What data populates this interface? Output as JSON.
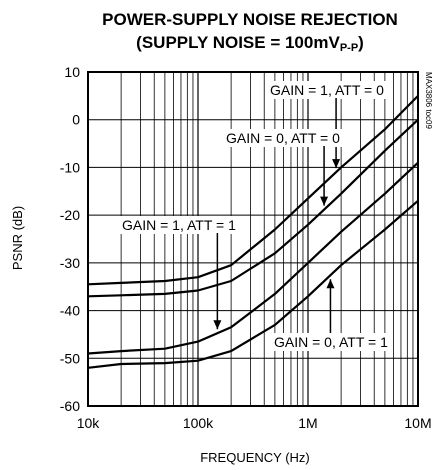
{
  "chart_data": {
    "type": "line",
    "title_line1": "POWER-SUPPLY NOISE REJECTION",
    "title_line2_main": "(SUPPLY NOISE = 100mV",
    "title_line2_sub": "P-P",
    "title_line2_end": ")",
    "xlabel": "FREQUENCY (Hz)",
    "ylabel": "PSNR (dB)",
    "x_scale": "log",
    "xlim": [
      10000,
      10000000
    ],
    "ylim": [
      -60,
      10
    ],
    "x_ticks": [
      10000,
      100000,
      1000000,
      10000000
    ],
    "x_tick_labels": [
      "10k",
      "100k",
      "1M",
      "10M"
    ],
    "y_ticks": [
      10,
      0,
      -10,
      -20,
      -30,
      -40,
      -50,
      -60
    ],
    "y_tick_labels": [
      "10",
      "0",
      "-10",
      "-20",
      "-30",
      "-40",
      "-50",
      "-60"
    ],
    "grid": true,
    "part_number": "MAX3806 toc09",
    "series": [
      {
        "name": "GAIN = 1, ATT = 0",
        "x": [
          10000,
          20000,
          50000,
          100000,
          200000,
          500000,
          1000000,
          2000000,
          5000000,
          10000000
        ],
        "y": [
          -34.5,
          -34.2,
          -33.8,
          -33.0,
          -30.5,
          -23.0,
          -16.5,
          -10.0,
          -2.0,
          5.0
        ]
      },
      {
        "name": "GAIN = 0, ATT = 0",
        "x": [
          10000,
          20000,
          50000,
          100000,
          200000,
          500000,
          1000000,
          2000000,
          5000000,
          10000000
        ],
        "y": [
          -37.0,
          -36.8,
          -36.5,
          -35.8,
          -33.8,
          -28.0,
          -22.0,
          -15.5,
          -6.5,
          0.0
        ]
      },
      {
        "name": "GAIN = 1, ATT = 1",
        "x": [
          10000,
          20000,
          50000,
          100000,
          200000,
          500000,
          1000000,
          2000000,
          5000000,
          10000000
        ],
        "y": [
          -49.0,
          -48.5,
          -48.0,
          -46.5,
          -43.5,
          -36.5,
          -30.0,
          -23.5,
          -15.5,
          -9.0
        ]
      },
      {
        "name": "GAIN = 0, ATT = 1",
        "x": [
          10000,
          20000,
          50000,
          100000,
          200000,
          500000,
          1000000,
          2000000,
          5000000,
          10000000
        ],
        "y": [
          -52.0,
          -51.2,
          -51.0,
          -50.5,
          -48.5,
          -43.0,
          -37.0,
          -30.5,
          -23.0,
          -17.0
        ]
      }
    ],
    "annotations": [
      {
        "text": "GAIN = 1, ATT = 0",
        "series": 0,
        "arrow_x": 1800000
      },
      {
        "text": "GAIN = 0, ATT = 0",
        "series": 1,
        "arrow_x": 1400000
      },
      {
        "text": "GAIN = 1, ATT = 1",
        "series": 2,
        "arrow_x": 150000
      },
      {
        "text": "GAIN = 0, ATT = 1",
        "series": 3,
        "arrow_x": 1600000
      }
    ]
  }
}
